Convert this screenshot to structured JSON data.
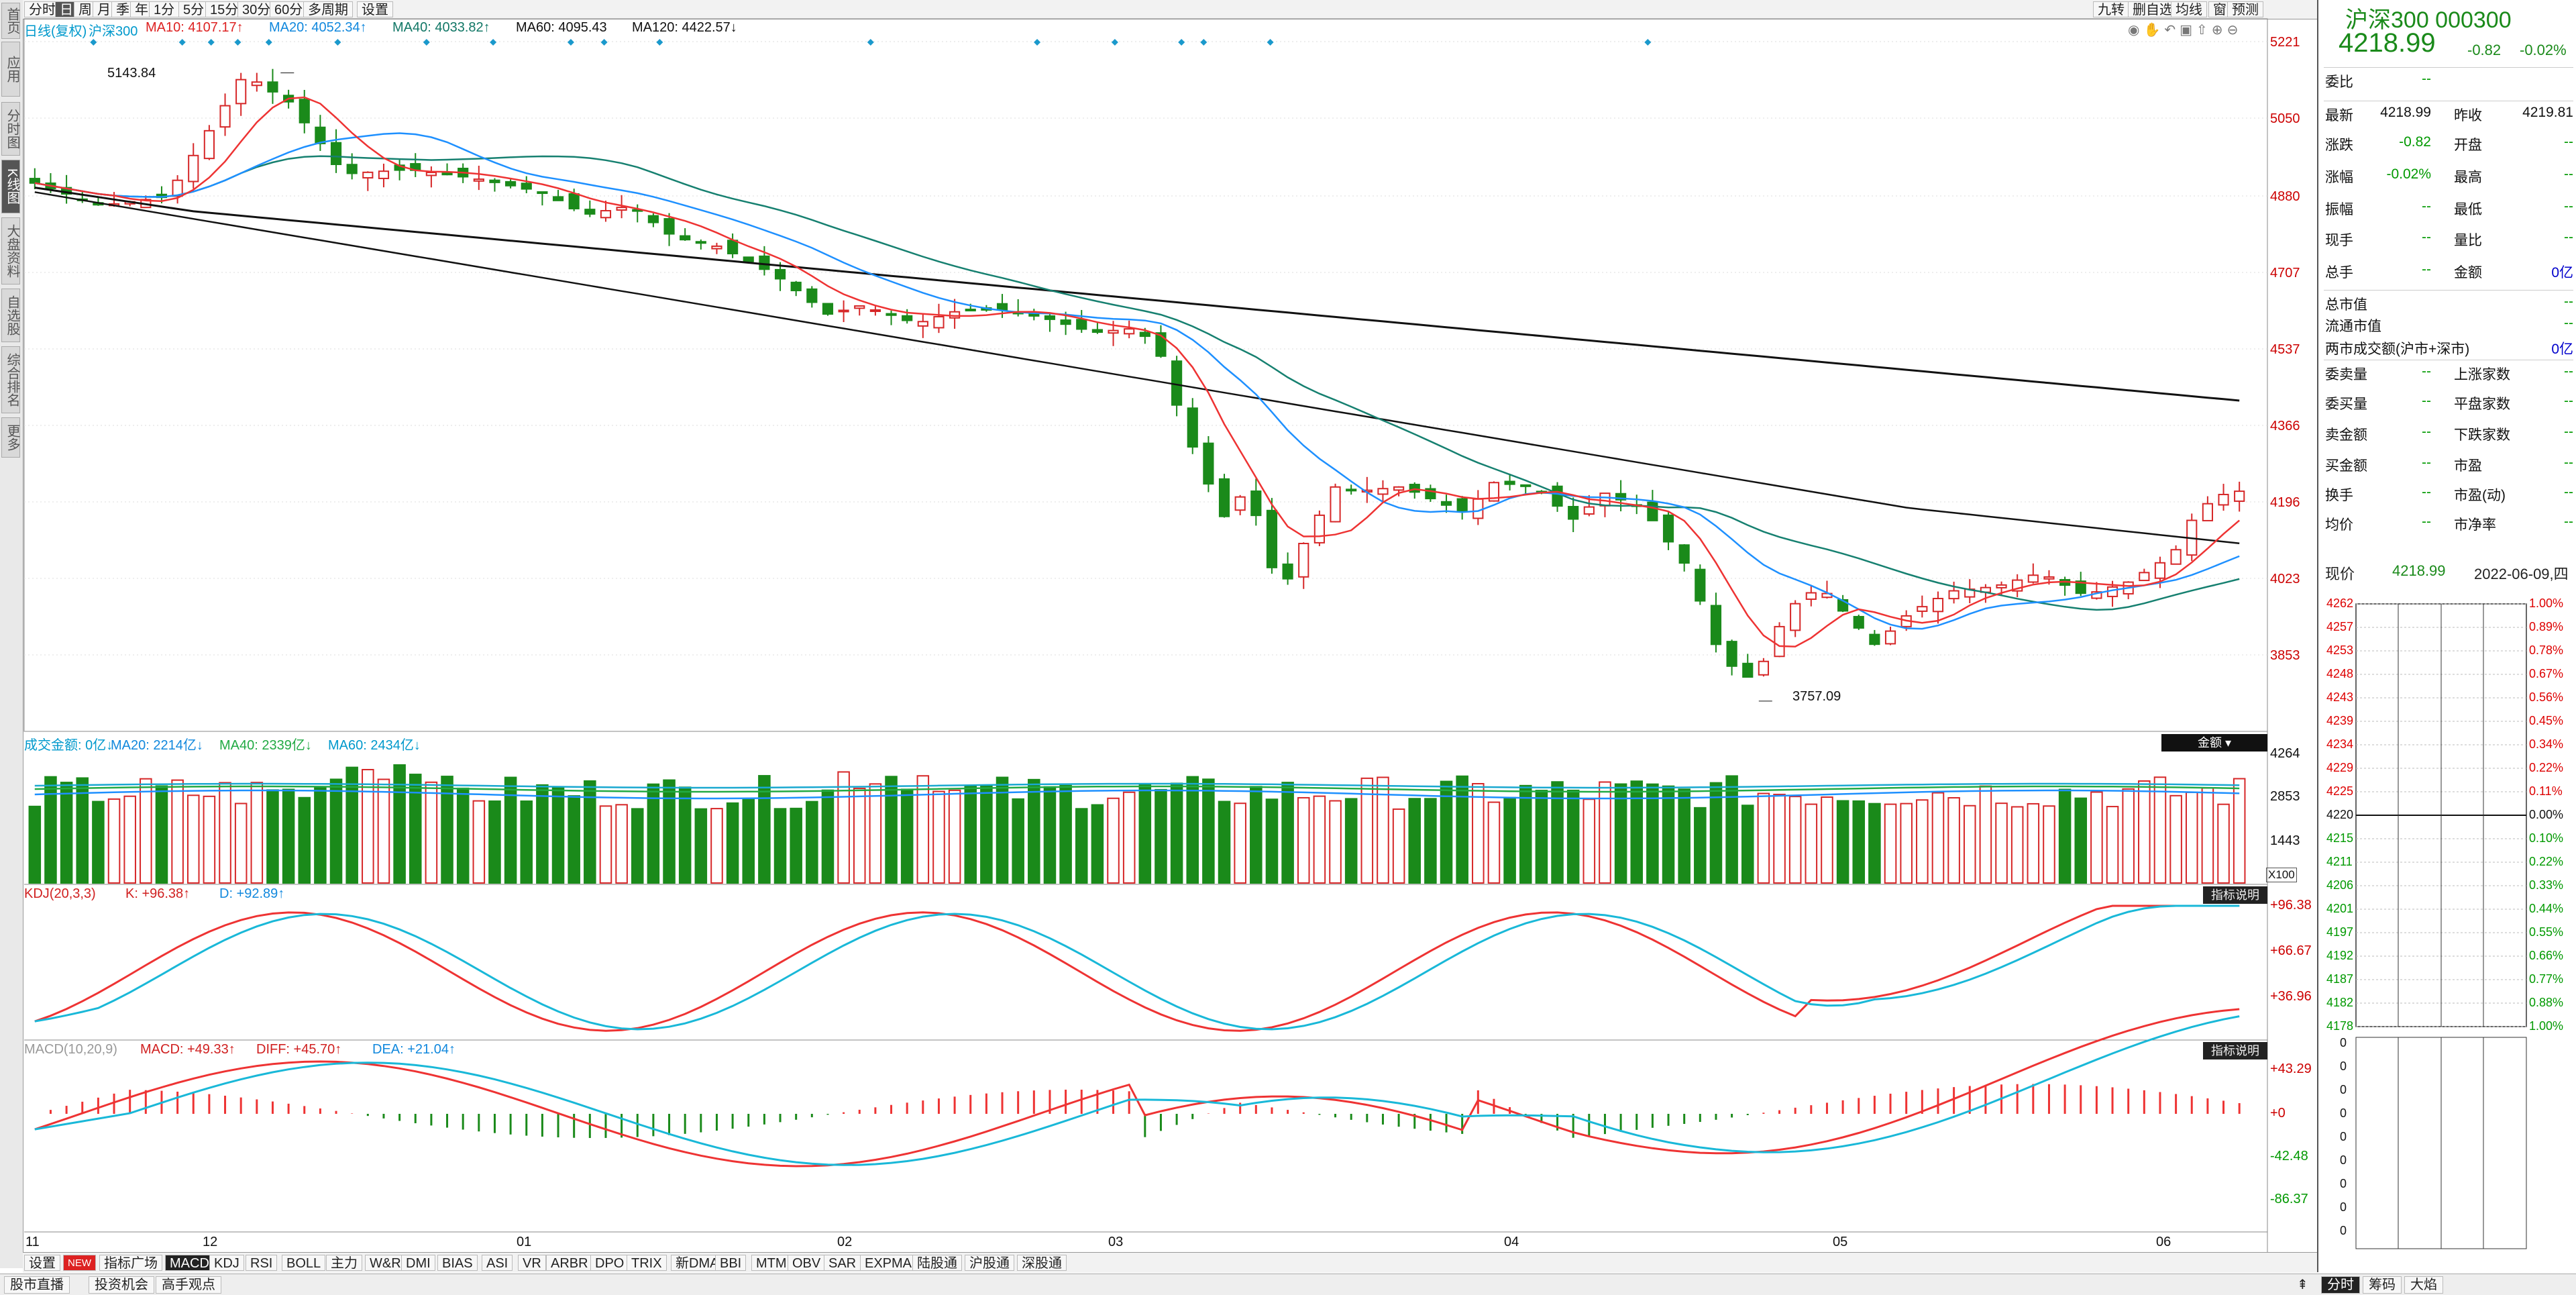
{
  "left_tabs": [
    "首页",
    "应用",
    "分时图",
    "K线图",
    "大盘资料",
    "自选股",
    "综合排名",
    "更多"
  ],
  "toolbar": {
    "periods": [
      "分时",
      "日",
      "周",
      "月",
      "季",
      "年",
      "1分",
      "5分",
      "15分",
      "30分",
      "60分",
      "多周期",
      "设置"
    ],
    "selected": "日",
    "right_buttons": [
      "九转",
      "删自选",
      "均线",
      "窗",
      "预测"
    ]
  },
  "main_info": {
    "items": [
      {
        "text": "日线(复权)",
        "color": "#0099cc"
      },
      {
        "text": "沪深300",
        "color": "#0099cc"
      },
      {
        "text": "MA10: 4107.17↑",
        "color": "#dd2222"
      },
      {
        "text": "MA20: 4052.34↑",
        "color": "#1188dd"
      },
      {
        "text": "MA40: 4033.82↑",
        "color": "#117766"
      },
      {
        "text": "MA60: 4095.43",
        "color": "#111111"
      },
      {
        "text": "MA120: 4422.57↓",
        "color": "#111111"
      }
    ]
  },
  "price_axis": [
    "5221",
    "5050",
    "4880",
    "4707",
    "4537",
    "4366",
    "4196",
    "4023",
    "3853"
  ],
  "annotations": {
    "high": "5143.84",
    "low": "3757.09"
  },
  "volume_info": {
    "items": [
      {
        "text": "成交金额: 0亿↓",
        "color": "#0099cc"
      },
      {
        "text": "MA20: 2214亿↓",
        "color": "#1188dd"
      },
      {
        "text": "MA40: 2339亿↓",
        "color": "#22aa44"
      },
      {
        "text": "MA60: 2434亿↓",
        "color": "#0099cc"
      }
    ],
    "axis": [
      "4264",
      "2853",
      "1443"
    ],
    "unit": "X100",
    "dropdown": "金额"
  },
  "kdj_info": {
    "items": [
      {
        "text": "KDJ(20,3,3)",
        "color": "#d02020"
      },
      {
        "text": "K: +96.38↑",
        "color": "#d02020"
      },
      {
        "text": "D: +92.89↑",
        "color": "#1188dd"
      }
    ],
    "axis": [
      "+96.38",
      "+66.67",
      "+36.96"
    ],
    "badge": "指标说明"
  },
  "macd_info": {
    "items": [
      {
        "text": "MACD(10,20,9)",
        "color": "#999999"
      },
      {
        "text": "MACD: +49.33↑",
        "color": "#d02020"
      },
      {
        "text": "DIFF: +45.70↑",
        "color": "#d02020"
      },
      {
        "text": "DEA: +21.04↑",
        "color": "#1188dd"
      }
    ],
    "axis": [
      "+43.29",
      "+0",
      "-42.48",
      "-86.37"
    ],
    "badge": "指标说明"
  },
  "date_axis": [
    "11",
    "12",
    "01",
    "02",
    "03",
    "04",
    "05",
    "06"
  ],
  "indicator_tabs": [
    "设置",
    "NEW",
    "指标广场",
    "MACD",
    "KDJ",
    "RSI",
    "BOLL",
    "主力",
    "W&R",
    "DMI",
    "BIAS",
    "ASI",
    "VR",
    "ARBR",
    "DPO",
    "TRIX",
    "新DMA",
    "BBI",
    "MTM",
    "OBV",
    "SAR",
    "EXPMA",
    "陆股通",
    "沪股通",
    "深股通"
  ],
  "indicator_selected": "MACD",
  "footer_tabs": [
    "股市直播",
    "投资机会",
    "高手观点"
  ],
  "footer_right": [
    "分时",
    "筹码",
    "大焰"
  ],
  "quote": {
    "name": "沪深300 000300",
    "price": "4218.99",
    "change": "-0.82",
    "pct": "-0.02%",
    "rows": [
      {
        "l1": "委比",
        "v1": "--",
        "l2": "",
        "v2": ""
      },
      {
        "l1": "最新",
        "v1": "4218.99",
        "l2": "昨收",
        "v2": "4219.81"
      },
      {
        "l1": "涨跌",
        "v1": "-0.82",
        "l2": "开盘",
        "v2": "--"
      },
      {
        "l1": "涨幅",
        "v1": "-0.02%",
        "l2": "最高",
        "v2": "--"
      },
      {
        "l1": "振幅",
        "v1": "--",
        "l2": "最低",
        "v2": "--"
      },
      {
        "l1": "现手",
        "v1": "--",
        "l2": "量比",
        "v2": "--"
      },
      {
        "l1": "总手",
        "v1": "--",
        "l2": "金额",
        "v2": "0亿"
      },
      {
        "l1": "总市值",
        "v1": "",
        "l2": "",
        "v2": "--"
      },
      {
        "l1": "流通市值",
        "v1": "",
        "l2": "",
        "v2": "--"
      },
      {
        "l1": "两市成交额(沪市+深市)",
        "v1": "",
        "l2": "",
        "v2": "0亿"
      },
      {
        "l1": "委卖量",
        "v1": "--",
        "l2": "上涨家数",
        "v2": "--"
      },
      {
        "l1": "委买量",
        "v1": "--",
        "l2": "平盘家数",
        "v2": "--"
      },
      {
        "l1": "卖金额",
        "v1": "--",
        "l2": "下跌家数",
        "v2": "--"
      },
      {
        "l1": "买金额",
        "v1": "--",
        "l2": "市盈",
        "v2": "--"
      },
      {
        "l1": "换手",
        "v1": "--",
        "l2": "市盈(动)",
        "v2": "--"
      },
      {
        "l1": "均价",
        "v1": "--",
        "l2": "市净率",
        "v2": "--"
      }
    ],
    "current_label": "现价",
    "current_value": "4218.99",
    "current_date": "2022-06-09,四",
    "mini_prices": [
      "4262",
      "4257",
      "4253",
      "4248",
      "4243",
      "4239",
      "4234",
      "4229",
      "4225",
      "4220",
      "4215",
      "4211",
      "4206",
      "4201",
      "4197",
      "4192",
      "4187",
      "4182",
      "4178"
    ],
    "mini_pcts": [
      "1.00%",
      "0.89%",
      "0.78%",
      "0.67%",
      "0.56%",
      "0.45%",
      "0.34%",
      "0.22%",
      "0.11%",
      "0.00%",
      "0.10%",
      "0.22%",
      "0.33%",
      "0.44%",
      "0.55%",
      "0.66%",
      "0.77%",
      "0.88%",
      "1.00%"
    ],
    "mini_vol": [
      "0",
      "0",
      "0",
      "0",
      "0",
      "0",
      "0",
      "0",
      "0"
    ]
  },
  "colors": {
    "up": "#d62728",
    "down": "#1a8a1a",
    "ma10": "#e33",
    "ma20": "#1e90ff",
    "ma40": "#168070",
    "ma60": "#111",
    "ma120": "#111"
  }
}
